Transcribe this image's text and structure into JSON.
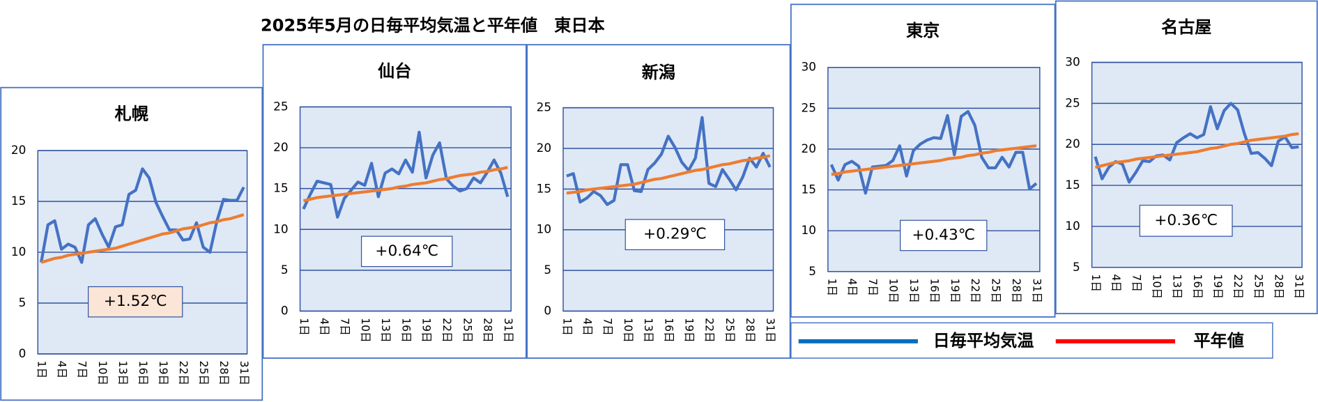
{
  "title": "2025年5月の日毎平均気温と平年値　東日本",
  "legend": {
    "items": [
      {
        "label": "日毎平均気温",
        "color": "#0070c0"
      },
      {
        "label": "平年値",
        "color": "#ff0000"
      }
    ]
  },
  "chart_data": [
    {
      "type": "line",
      "title": "札幌",
      "categories": [
        "1日",
        null,
        null,
        "4日",
        null,
        null,
        "7日",
        null,
        null,
        "10日",
        null,
        null,
        "13日",
        null,
        null,
        "16日",
        null,
        null,
        "19日",
        null,
        null,
        "22日",
        null,
        null,
        "25日",
        null,
        null,
        "28日",
        null,
        null,
        "31日"
      ],
      "series": [
        {
          "color": "#4472c4",
          "values": [
            9.0,
            12.7,
            13.1,
            10.3,
            10.8,
            10.5,
            9.0,
            12.7,
            13.3,
            11.8,
            10.5,
            12.5,
            12.7,
            15.7,
            16.1,
            18.2,
            17.3,
            14.9,
            13.5,
            12.2,
            12.2,
            11.2,
            11.3,
            12.9,
            10.5,
            10.0,
            13.0,
            15.2,
            15.1,
            15.1,
            16.4
          ]
        },
        {
          "color": "#ed7d31",
          "values": [
            9.0,
            9.2,
            9.4,
            9.5,
            9.7,
            9.8,
            9.9,
            10.0,
            10.1,
            10.2,
            10.3,
            10.4,
            10.6,
            10.8,
            11.0,
            11.2,
            11.4,
            11.6,
            11.8,
            11.9,
            12.1,
            12.3,
            12.4,
            12.5,
            12.7,
            12.9,
            13.0,
            13.2,
            13.3,
            13.5,
            13.7
          ]
        }
      ],
      "ylim": [
        0,
        20
      ],
      "yticks": [
        0,
        5,
        10,
        15,
        20
      ],
      "grid": true,
      "annotation": "+1.52℃",
      "annotation_color": "#fbe5d6"
    },
    {
      "type": "line",
      "title": "仙台",
      "categories": [
        "1日",
        null,
        null,
        "4日",
        null,
        null,
        "7日",
        null,
        null,
        "10日",
        null,
        null,
        "13日",
        null,
        null,
        "16日",
        null,
        null,
        "19日",
        null,
        null,
        "22日",
        null,
        null,
        "25日",
        null,
        null,
        "28日",
        null,
        null,
        "31日"
      ],
      "series": [
        {
          "color": "#4472c4",
          "values": [
            12.5,
            14.3,
            15.9,
            15.7,
            15.5,
            11.5,
            13.8,
            14.8,
            15.8,
            15.4,
            18.1,
            14.0,
            16.9,
            17.4,
            16.8,
            18.5,
            17.0,
            21.9,
            16.3,
            19.1,
            20.6,
            16.2,
            15.3,
            14.7,
            15.0,
            16.3,
            15.7,
            17.0,
            18.5,
            16.9,
            14.0
          ]
        },
        {
          "color": "#ed7d31",
          "values": [
            13.5,
            13.7,
            13.9,
            14.0,
            14.1,
            14.2,
            14.3,
            14.4,
            14.5,
            14.6,
            14.7,
            14.8,
            14.9,
            15.0,
            15.2,
            15.3,
            15.5,
            15.6,
            15.7,
            15.9,
            16.1,
            16.2,
            16.4,
            16.6,
            16.7,
            16.8,
            17.0,
            17.1,
            17.3,
            17.4,
            17.6
          ]
        }
      ],
      "ylim": [
        0,
        25
      ],
      "yticks": [
        0,
        5,
        10,
        15,
        20,
        25
      ],
      "grid": true,
      "annotation": "+0.64℃",
      "annotation_color": "#ffffff"
    },
    {
      "type": "line",
      "title": "新潟",
      "categories": [
        "1日",
        null,
        null,
        "4日",
        null,
        null,
        "7日",
        null,
        null,
        "10日",
        null,
        null,
        "13日",
        null,
        null,
        "16日",
        null,
        null,
        "19日",
        null,
        null,
        "22日",
        null,
        null,
        "25日",
        null,
        null,
        "28日",
        null,
        null,
        "31日"
      ],
      "series": [
        {
          "color": "#4472c4",
          "values": [
            16.6,
            16.9,
            13.4,
            13.9,
            14.7,
            14.2,
            13.1,
            13.6,
            18.0,
            18.0,
            14.8,
            14.7,
            17.4,
            18.2,
            19.3,
            21.5,
            20.1,
            18.3,
            17.3,
            18.8,
            23.8,
            15.7,
            15.3,
            17.4,
            16.2,
            14.9,
            16.5,
            18.8,
            17.7,
            19.4,
            17.7
          ]
        },
        {
          "color": "#ed7d31",
          "values": [
            14.5,
            14.6,
            14.7,
            14.9,
            15.0,
            15.1,
            15.2,
            15.3,
            15.4,
            15.5,
            15.6,
            15.8,
            16.0,
            16.2,
            16.3,
            16.5,
            16.7,
            16.9,
            17.1,
            17.3,
            17.4,
            17.6,
            17.8,
            18.0,
            18.1,
            18.3,
            18.5,
            18.6,
            18.8,
            18.9,
            19.1
          ]
        }
      ],
      "ylim": [
        0,
        25
      ],
      "yticks": [
        0,
        5,
        10,
        15,
        20,
        25
      ],
      "grid": true,
      "annotation": "+0.29℃",
      "annotation_color": "#ffffff"
    },
    {
      "type": "line",
      "title": "東京",
      "categories": [
        "1日",
        null,
        null,
        "4日",
        null,
        null,
        "7日",
        null,
        null,
        "10日",
        null,
        null,
        "13日",
        null,
        null,
        "16日",
        null,
        null,
        "19日",
        null,
        null,
        "22日",
        null,
        null,
        "25日",
        null,
        null,
        "28日",
        null,
        null,
        "31日"
      ],
      "series": [
        {
          "color": "#4472c4",
          "values": [
            18.1,
            16.2,
            18.1,
            18.5,
            17.9,
            14.6,
            17.8,
            17.9,
            18.0,
            18.6,
            20.4,
            16.7,
            19.8,
            20.6,
            21.1,
            21.4,
            21.3,
            24.1,
            19.3,
            24.0,
            24.6,
            22.9,
            19.0,
            17.7,
            17.7,
            19.0,
            17.8,
            19.6,
            19.6,
            15.1,
            15.8
          ]
        },
        {
          "color": "#ed7d31",
          "values": [
            16.9,
            17.0,
            17.2,
            17.3,
            17.4,
            17.5,
            17.6,
            17.7,
            17.8,
            17.9,
            18.0,
            18.1,
            18.2,
            18.3,
            18.4,
            18.5,
            18.6,
            18.8,
            18.9,
            19.0,
            19.2,
            19.3,
            19.5,
            19.6,
            19.8,
            19.9,
            20.0,
            20.1,
            20.2,
            20.3,
            20.4
          ]
        }
      ],
      "ylim": [
        5,
        30
      ],
      "yticks": [
        5,
        10,
        15,
        20,
        25,
        30
      ],
      "grid": true,
      "annotation": "+0.43℃",
      "annotation_color": "#ffffff"
    },
    {
      "type": "line",
      "title": "名古屋",
      "categories": [
        "1日",
        null,
        null,
        "4日",
        null,
        null,
        "7日",
        null,
        null,
        "10日",
        null,
        null,
        "13日",
        null,
        null,
        "16日",
        null,
        null,
        "19日",
        null,
        null,
        "22日",
        null,
        null,
        "25日",
        null,
        null,
        "28日",
        null,
        null,
        "31日"
      ],
      "series": [
        {
          "color": "#4472c4",
          "values": [
            18.5,
            15.8,
            17.2,
            17.9,
            17.6,
            15.4,
            16.6,
            18.0,
            17.9,
            18.6,
            18.7,
            18.1,
            20.2,
            20.8,
            21.3,
            20.8,
            21.2,
            24.6,
            21.9,
            24.1,
            25.0,
            24.2,
            21.3,
            18.9,
            19.0,
            18.3,
            17.4,
            20.4,
            20.9,
            19.6,
            19.7
          ]
        },
        {
          "color": "#ed7d31",
          "values": [
            17.2,
            17.4,
            17.6,
            17.8,
            17.9,
            18.0,
            18.2,
            18.3,
            18.4,
            18.5,
            18.6,
            18.7,
            18.8,
            18.9,
            19.0,
            19.1,
            19.3,
            19.5,
            19.6,
            19.8,
            20.0,
            20.1,
            20.3,
            20.5,
            20.6,
            20.7,
            20.8,
            20.9,
            21.0,
            21.2,
            21.3
          ]
        }
      ],
      "ylim": [
        5,
        30
      ],
      "yticks": [
        5,
        10,
        15,
        20,
        25,
        30
      ],
      "grid": true,
      "annotation": "+0.36℃",
      "annotation_color": "#ffffff"
    }
  ]
}
